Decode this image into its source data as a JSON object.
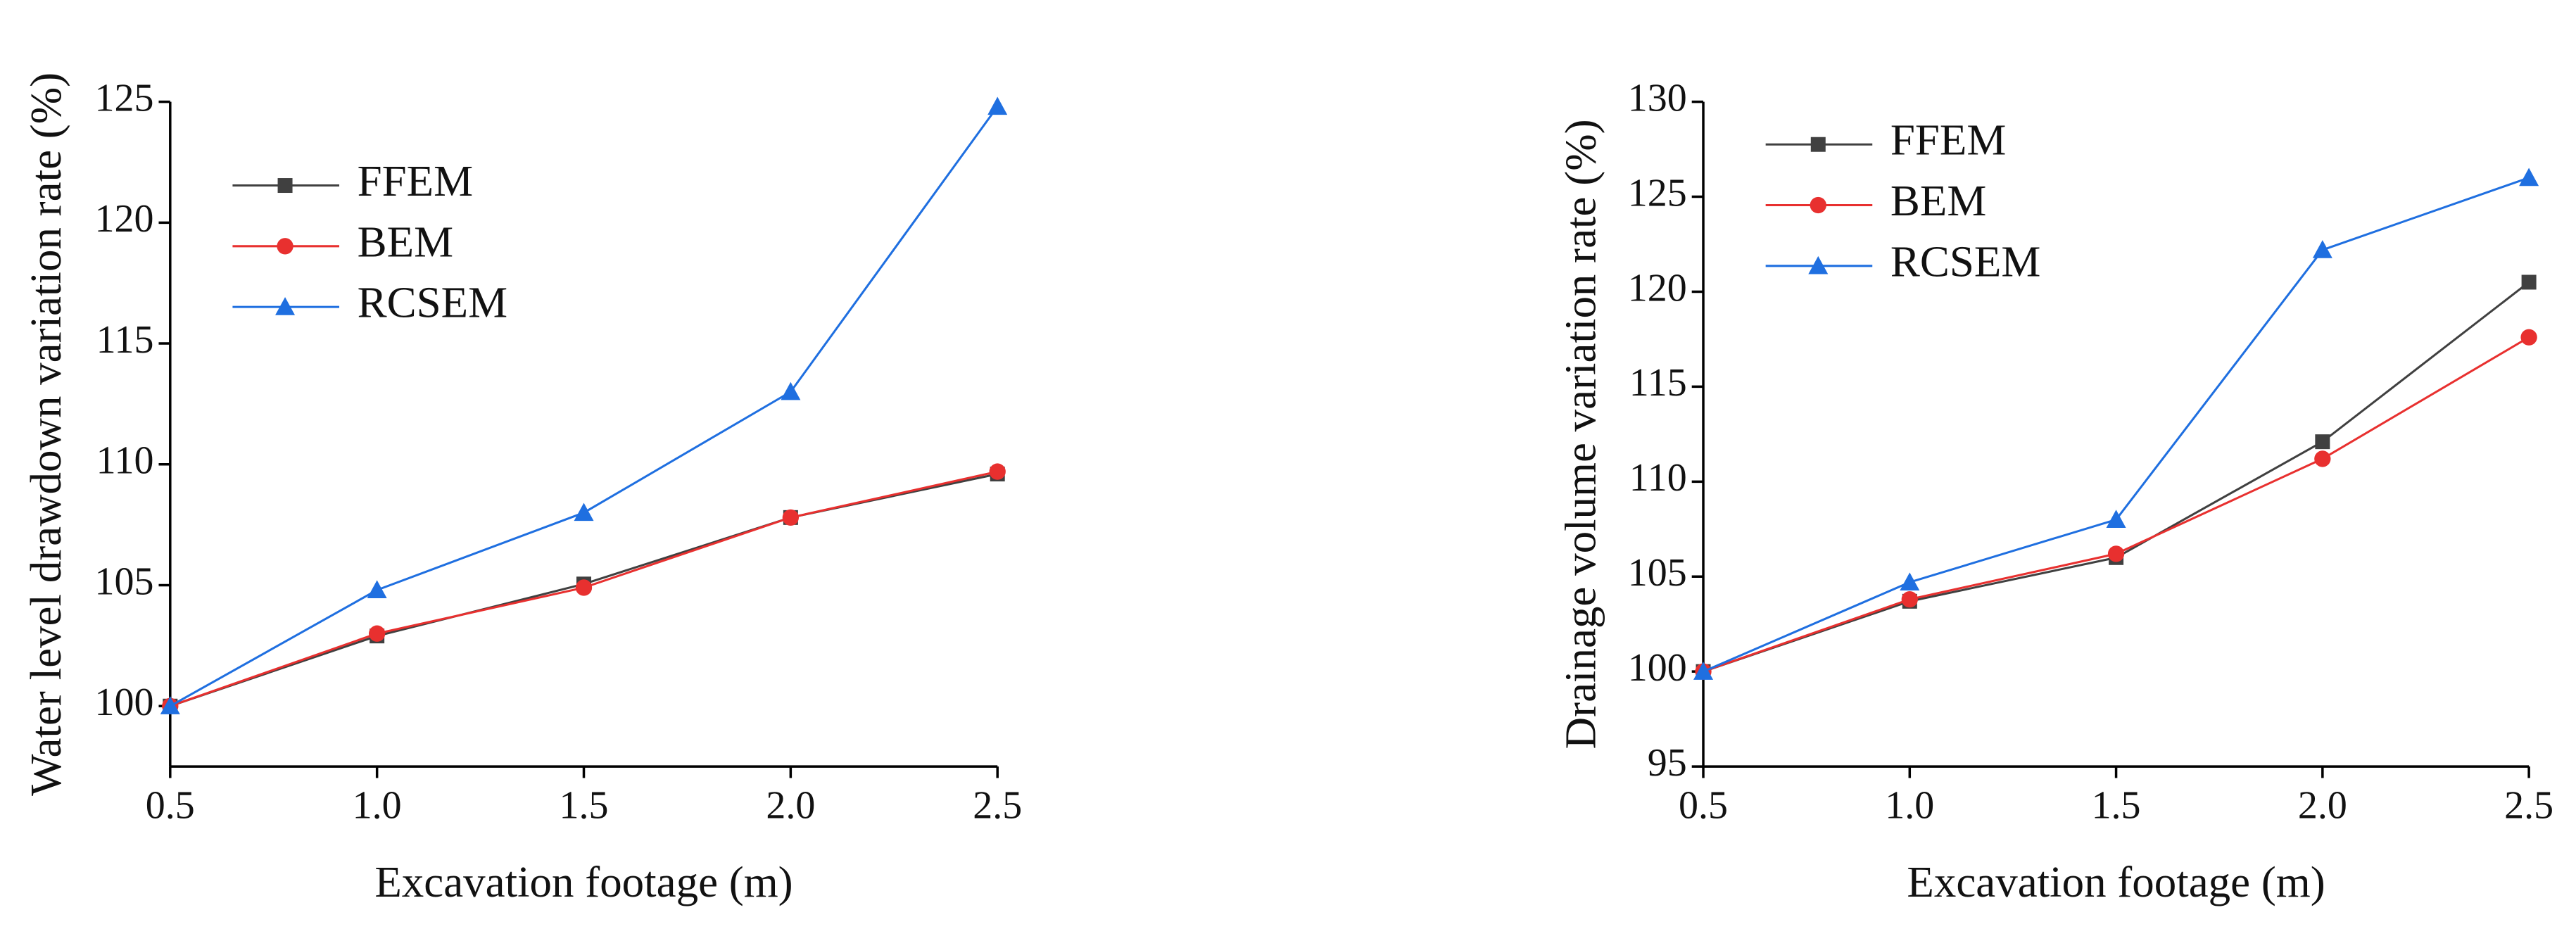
{
  "chart_data": [
    {
      "type": "line",
      "xlabel": "Excavation footage (m)",
      "ylabel": "Water level drawdown variation rate (%)",
      "x": [
        0.5,
        1,
        1.5,
        2,
        2.5
      ],
      "series": [
        {
          "name": "FFEM",
          "color": "#404040",
          "marker": "square",
          "values": [
            100,
            102.9,
            105.05,
            107.8,
            109.6
          ]
        },
        {
          "name": "BEM",
          "color": "#e8302f",
          "marker": "circle",
          "values": [
            100,
            103.0,
            104.9,
            107.8,
            109.7
          ]
        },
        {
          "name": "RCSEM",
          "color": "#1f6fe0",
          "marker": "triangle",
          "values": [
            100,
            104.8,
            108.0,
            113.0,
            124.8
          ]
        }
      ],
      "xlim": [
        0.5,
        2.5
      ],
      "xticks": [
        0.5,
        {
          "value": 1,
          "label": "1.0"
        },
        1.5,
        {
          "value": 2,
          "label": "2.0"
        },
        2.5
      ],
      "ylim": [
        97.5,
        125
      ],
      "yticks": [
        100,
        105,
        110,
        115,
        120,
        125
      ],
      "legend": "upper left"
    },
    {
      "type": "line",
      "xlabel": "Excavation footage (m)",
      "ylabel": "Drainage volume variation rate (%)",
      "x": [
        0.5,
        1,
        1.5,
        2,
        2.5
      ],
      "series": [
        {
          "name": "FFEM",
          "color": "#404040",
          "marker": "square",
          "values": [
            100,
            103.7,
            106.0,
            112.1,
            120.5
          ]
        },
        {
          "name": "BEM",
          "color": "#e8302f",
          "marker": "circle",
          "values": [
            100,
            103.8,
            106.2,
            111.2,
            117.6
          ]
        },
        {
          "name": "RCSEM",
          "color": "#1f6fe0",
          "marker": "triangle",
          "values": [
            100,
            104.7,
            108.0,
            122.2,
            126.0
          ]
        }
      ],
      "xlim": [
        0.5,
        2.5
      ],
      "xticks": [
        0.5,
        {
          "value": 1,
          "label": "1.0"
        },
        1.5,
        {
          "value": 2,
          "label": "2.0"
        },
        2.5
      ],
      "ylim": [
        95,
        130
      ],
      "yticks": [
        95,
        100,
        105,
        110,
        115,
        120,
        125,
        130
      ],
      "legend": "upper left"
    }
  ]
}
